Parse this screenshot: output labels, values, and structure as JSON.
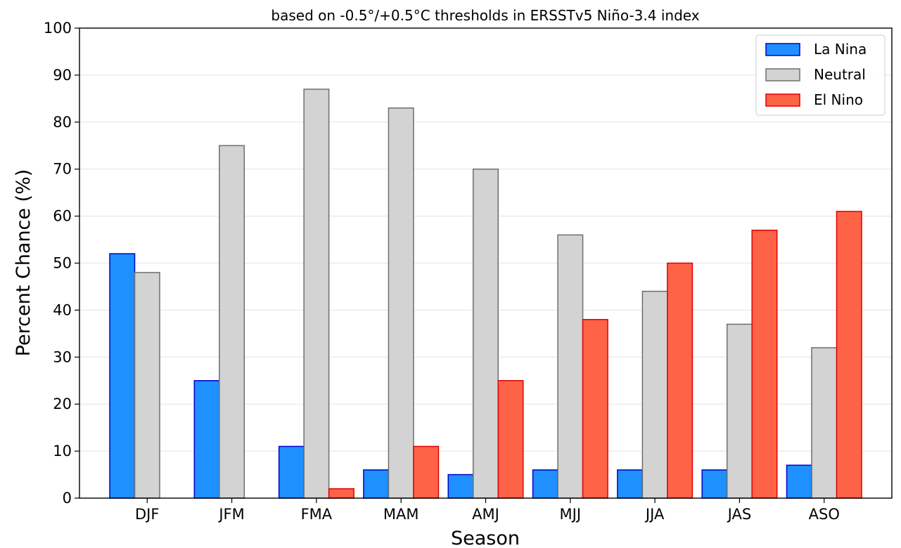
{
  "chart_data": {
    "type": "bar",
    "title": "based on -0.5°/+0.5°C thresholds in ERSSTv5 Niño-3.4 index",
    "xlabel": "Season",
    "ylabel": "Percent Chance (%)",
    "ylim": [
      0,
      100
    ],
    "yticks": [
      0,
      10,
      20,
      30,
      40,
      50,
      60,
      70,
      80,
      90,
      100
    ],
    "grid": "horizontal",
    "legend_position": "top-right",
    "categories": [
      "DJF",
      "JFM",
      "FMA",
      "MAM",
      "AMJ",
      "MJJ",
      "JJA",
      "JAS",
      "ASO"
    ],
    "series": [
      {
        "name": "La Nina",
        "values": [
          52,
          25,
          11,
          6,
          5,
          6,
          6,
          6,
          7
        ],
        "color": "#1e90ff",
        "edge": "#0000cc"
      },
      {
        "name": "Neutral",
        "values": [
          48,
          75,
          87,
          83,
          70,
          56,
          44,
          37,
          32
        ],
        "color": "#d3d3d3",
        "edge": "#6e6e6e"
      },
      {
        "name": "El Nino",
        "values": [
          0,
          0,
          2,
          11,
          25,
          38,
          50,
          57,
          61
        ],
        "color": "#ff6347",
        "edge": "#e00000"
      }
    ]
  }
}
